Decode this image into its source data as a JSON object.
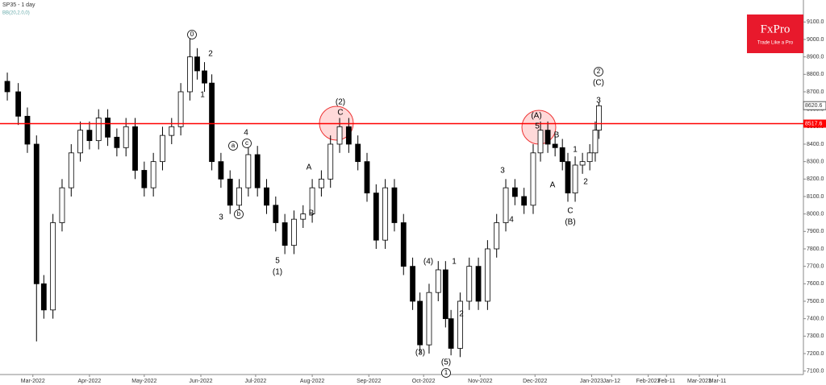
{
  "chart_data": {
    "type": "candlestick",
    "title": "SP35 - 1 day",
    "subtitle": "BB(20,2.0,0)",
    "logo": "FxPro",
    "logo_tagline": "Trade Like a Pro",
    "x": [
      -14,
      -8,
      -3,
      2,
      6,
      11,
      16,
      21,
      26,
      31,
      36,
      41,
      46,
      51,
      56,
      61,
      66,
      71,
      76,
      81,
      86,
      90,
      94,
      98,
      103,
      108,
      113,
      118,
      123,
      128,
      133,
      138,
      143,
      148,
      153,
      158,
      163,
      168,
      173,
      178,
      183,
      188,
      193,
      198,
      203,
      208,
      212,
      217,
      222,
      226,
      229,
      234,
      239,
      244,
      249,
      254,
      259,
      264,
      269,
      274,
      278,
      282,
      286,
      290,
      293,
      297,
      301,
      305,
      308,
      310
    ],
    "open": [
      8760,
      8700,
      8560,
      8400,
      7600,
      7450,
      7950,
      8150,
      8350,
      8480,
      8420,
      8550,
      8440,
      8380,
      8500,
      8250,
      8150,
      8300,
      8450,
      8500,
      8700,
      8900,
      8820,
      8750,
      8300,
      8200,
      8050,
      8150,
      8340,
      8150,
      8050,
      7950,
      7820,
      7970,
      8000,
      8150,
      8200,
      8400,
      8500,
      8400,
      8300,
      8120,
      7850,
      8150,
      7950,
      7700,
      7500,
      7250,
      7550,
      7680,
      7400,
      7230,
      7500,
      7700,
      7500,
      7800,
      7950,
      8150,
      8100,
      8050,
      8350,
      8480,
      8400,
      8380,
      8300,
      8120,
      8280,
      8300,
      8350,
      8480
    ],
    "high": [
      8810,
      8750,
      8610,
      8450,
      7650,
      8000,
      8200,
      8400,
      8530,
      8530,
      8600,
      8600,
      8490,
      8550,
      8550,
      8300,
      8350,
      8500,
      8550,
      8750,
      9020,
      8950,
      8870,
      8800,
      8350,
      8250,
      8200,
      8390,
      8390,
      8200,
      8100,
      8000,
      8020,
      8050,
      8200,
      8250,
      8450,
      8550,
      8550,
      8450,
      8350,
      8170,
      8200,
      8200,
      8000,
      7750,
      7550,
      7600,
      7730,
      7730,
      7450,
      7550,
      7750,
      7750,
      7850,
      8000,
      8200,
      8200,
      8150,
      8400,
      8530,
      8530,
      8450,
      8430,
      8350,
      8330,
      8350,
      8400,
      8530,
      8640
    ],
    "low": [
      8650,
      8510,
      8350,
      7270,
      7400,
      7400,
      7900,
      8100,
      8300,
      8370,
      8370,
      8390,
      8330,
      8330,
      8200,
      8100,
      8100,
      8250,
      8400,
      8450,
      8650,
      8770,
      8700,
      8250,
      8150,
      8000,
      8000,
      8100,
      8100,
      8000,
      7900,
      7770,
      7770,
      7920,
      7950,
      8100,
      8150,
      8350,
      8350,
      8250,
      8070,
      7800,
      7800,
      7900,
      7650,
      7450,
      7200,
      7200,
      7500,
      7350,
      7190,
      7180,
      7450,
      7450,
      7450,
      7750,
      7900,
      8050,
      8000,
      8000,
      8300,
      8350,
      8330,
      8250,
      8070,
      8070,
      8230,
      8250,
      8300,
      8430
    ],
    "close": [
      8700,
      8560,
      8400,
      7600,
      7450,
      7950,
      8150,
      8350,
      8480,
      8420,
      8550,
      8440,
      8380,
      8500,
      8250,
      8150,
      8300,
      8450,
      8500,
      8700,
      8900,
      8820,
      8750,
      8300,
      8200,
      8050,
      8150,
      8340,
      8150,
      8050,
      7950,
      7820,
      7970,
      8000,
      8150,
      8200,
      8400,
      8500,
      8400,
      8300,
      8120,
      7850,
      8150,
      7950,
      7700,
      7500,
      7250,
      7550,
      7680,
      7400,
      7230,
      7500,
      7700,
      7500,
      7800,
      7950,
      8150,
      8100,
      8050,
      8350,
      8480,
      8400,
      8380,
      8300,
      8120,
      8280,
      8300,
      8350,
      8480,
      8620
    ],
    "up_color": "#ffffff",
    "down_color": "#000000",
    "xlim": [
      -18,
      422
    ],
    "ylim": [
      7080,
      9226
    ],
    "xticks": [
      {
        "value": 0,
        "label": "Mar-2022"
      },
      {
        "value": 31,
        "label": "Apr-2022"
      },
      {
        "value": 61,
        "label": "May-2022"
      },
      {
        "value": 92,
        "label": "Jun-2022"
      },
      {
        "value": 122,
        "label": "Jul-2022"
      },
      {
        "value": 153,
        "label": "Aug-2022"
      },
      {
        "value": 184,
        "label": "Sep-2022"
      },
      {
        "value": 214,
        "label": "Oct-2022"
      },
      {
        "value": 245,
        "label": "Nov-2022"
      },
      {
        "value": 275,
        "label": "Dec-2022"
      },
      {
        "value": 306,
        "label": "Jan-2023"
      },
      {
        "value": 317,
        "label": "Jan-12"
      },
      {
        "value": 337,
        "label": "Feb-2023"
      },
      {
        "value": 347,
        "label": "Feb-11"
      },
      {
        "value": 365,
        "label": "Mar-2023"
      },
      {
        "value": 375,
        "label": "Mar-11"
      }
    ],
    "yticks": [
      {
        "value": 7100,
        "label": "7100.0"
      },
      {
        "value": 7200,
        "label": "7200.0"
      },
      {
        "value": 7300,
        "label": "7300.0"
      },
      {
        "value": 7400,
        "label": "7400.0"
      },
      {
        "value": 7500,
        "label": "7500.0"
      },
      {
        "value": 7600,
        "label": "7600.0"
      },
      {
        "value": 7700,
        "label": "7700.0"
      },
      {
        "value": 7800,
        "label": "7800.0"
      },
      {
        "value": 7900,
        "label": "7900.0"
      },
      {
        "value": 8000,
        "label": "8000.0"
      },
      {
        "value": 8100,
        "label": "8100.0"
      },
      {
        "value": 8200,
        "label": "8200.0"
      },
      {
        "value": 8300,
        "label": "8300.0"
      },
      {
        "value": 8400,
        "label": "8400.0"
      },
      {
        "value": 8500,
        "label": "8500.0"
      },
      {
        "value": 8600,
        "label": "8600.0"
      },
      {
        "value": 8700,
        "label": "8700.0"
      },
      {
        "value": 8800,
        "label": "8800.0"
      },
      {
        "value": 8900,
        "label": "8900.0"
      },
      {
        "value": 9000,
        "label": "9000.0"
      },
      {
        "value": 9100,
        "label": "9100.0"
      }
    ],
    "level": {
      "value": 8517.6,
      "label": "8517.6",
      "color": "#ff0000"
    },
    "last_price": {
      "value": 8620.6,
      "label": "8620.6"
    },
    "annotations": [
      "0",
      "2",
      "1",
      "4",
      "a",
      "c",
      "3",
      "b",
      "5",
      "(1)",
      "(2)",
      "C",
      "A",
      "B",
      "(3)",
      "(4)",
      "(5)",
      "1",
      "1",
      "2",
      "3",
      "4",
      "(A)",
      "5",
      "B",
      "A",
      "1",
      "2",
      "C",
      "(B)",
      "3",
      "2",
      "(C)"
    ]
  }
}
